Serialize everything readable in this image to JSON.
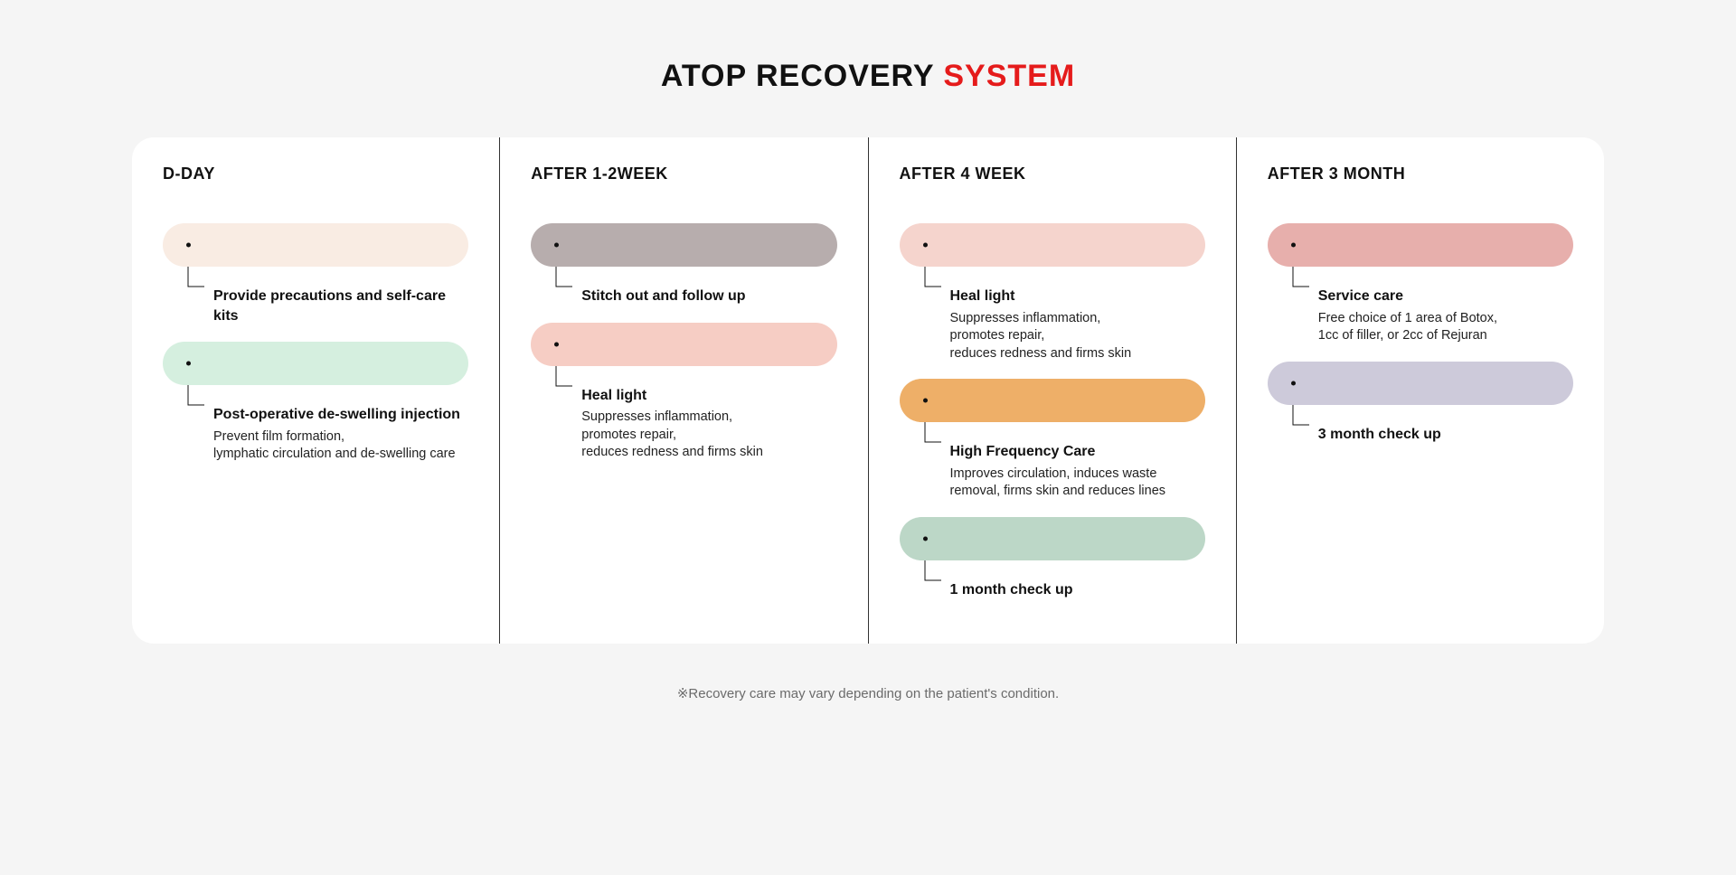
{
  "title": {
    "part1": "ATOP RECOVERY ",
    "part2": "SYSTEM",
    "color1": "#111111",
    "color2": "#e51b1b"
  },
  "card": {
    "background": "#ffffff",
    "border_radius": 24,
    "divider_color": "#323232"
  },
  "page_background": "#f5f5f5",
  "connector": {
    "stroke": "#111111",
    "stroke_width": 1
  },
  "dot_color": "#111111",
  "columns": [
    {
      "header": "D-DAY",
      "entries": [
        {
          "pill_color": "#f9ece3",
          "title": "Provide precautions\nand self-care kits",
          "desc": ""
        },
        {
          "pill_color": "#d5efdf",
          "title": "Post-operative de-swelling injection",
          "desc": "Prevent film formation,\nlymphatic circulation and de-swelling care"
        }
      ]
    },
    {
      "header": "AFTER 1-2WEEK",
      "entries": [
        {
          "pill_color": "#b7adad",
          "title": "Stitch out and follow up",
          "desc": ""
        },
        {
          "pill_color": "#f6cdc4",
          "title": "Heal light",
          "desc": "Suppresses inflammation,\npromotes repair,\nreduces redness and firms skin"
        }
      ]
    },
    {
      "header": "AFTER 4 WEEK",
      "entries": [
        {
          "pill_color": "#f5d4cd",
          "title": "Heal light",
          "desc": "Suppresses inflammation,\npromotes repair,\nreduces redness and firms skin"
        },
        {
          "pill_color": "#eeaf68",
          "title": "High Frequency Care",
          "desc": "Improves circulation, induces waste\nremoval, firms skin and reduces lines"
        },
        {
          "pill_color": "#bcd7c7",
          "title": "1 month check up",
          "desc": ""
        }
      ]
    },
    {
      "header": "AFTER 3 MONTH",
      "entries": [
        {
          "pill_color": "#e7afac",
          "title": "Service care",
          "desc": "Free choice of 1 area of Botox,\n1cc of filler, or 2cc of Rejuran"
        },
        {
          "pill_color": "#cdcada",
          "title": "3 month check up",
          "desc": ""
        }
      ]
    }
  ],
  "footnote": "※Recovery care may vary depending on the patient's condition."
}
